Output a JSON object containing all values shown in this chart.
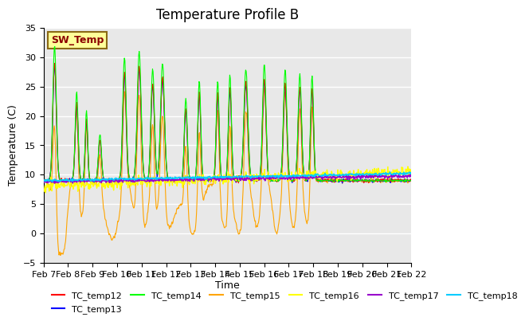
{
  "title": "Temperature Profile B",
  "xlabel": "Time",
  "ylabel": "Temperature (C)",
  "ylim": [
    -5,
    35
  ],
  "yticks": [
    -5,
    0,
    5,
    10,
    15,
    20,
    25,
    30,
    35
  ],
  "date_labels": [
    "Feb 7",
    "Feb 8",
    "Feb 9",
    "Feb 10",
    "Feb 11",
    "Feb 12",
    "Feb 13",
    "Feb 14",
    "Feb 15",
    "Feb 16",
    "Feb 17",
    "Feb 18",
    "Feb 19",
    "Feb 20",
    "Feb 21",
    "Feb 22"
  ],
  "sw_temp_label": "SW_Temp",
  "legend_entries": [
    "TC_temp12",
    "TC_temp13",
    "TC_temp14",
    "TC_temp15",
    "TC_temp16",
    "TC_temp17",
    "TC_temp18"
  ],
  "legend_colors": [
    "#FF0000",
    "#0000FF",
    "#00FF00",
    "#FFA500",
    "#FFFF00",
    "#9900CC",
    "#00CCFF"
  ],
  "bg_color": "#E8E8E8",
  "fig_bg": "#FFFFFF",
  "grid_color": "#FFFFFF",
  "sw_temp_box_color": "#FFFF99",
  "sw_temp_text_color": "#8B0000",
  "sw_temp_border_color": "#8B6914",
  "n_days": 15,
  "n_points_per_day": 48
}
